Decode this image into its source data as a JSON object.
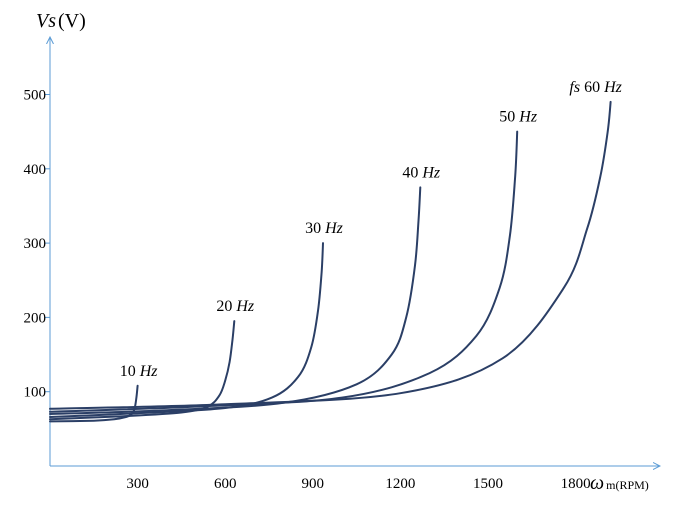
{
  "chart_data": {
    "type": "line",
    "ylabel_main": "Vs",
    "ylabel_unit": "(V)",
    "xlabel_symbol": "ω",
    "xlabel_sub": "m(RPM)",
    "xticks": [
      300,
      600,
      900,
      1200,
      1500,
      1800
    ],
    "yticks": [
      100,
      200,
      300,
      400,
      500
    ],
    "xlim": [
      0,
      2100
    ],
    "ylim": [
      0,
      585
    ],
    "line_color": "#2b3f66",
    "series_prefix": "fs",
    "series": [
      {
        "name": "10 Hz",
        "num": "10",
        "unit": "Hz",
        "x": [
          0,
          150,
          220,
          260,
          280,
          290,
          296,
          300
        ],
        "y": [
          60,
          61,
          63,
          66,
          70,
          78,
          92,
          108
        ]
      },
      {
        "name": "20 Hz",
        "num": "20",
        "unit": "Hz",
        "x": [
          0,
          250,
          450,
          540,
          580,
          600,
          615,
          625,
          631
        ],
        "y": [
          63,
          67,
          72,
          80,
          95,
          115,
          140,
          170,
          195
        ]
      },
      {
        "name": "30 Hz",
        "num": "30",
        "unit": "Hz",
        "x": [
          0,
          300,
          600,
          760,
          850,
          895,
          918,
          930,
          935
        ],
        "y": [
          66,
          71,
          78,
          92,
          120,
          160,
          210,
          260,
          300
        ]
      },
      {
        "name": "40 Hz",
        "num": "40",
        "unit": "Hz",
        "x": [
          0,
          400,
          800,
          1050,
          1170,
          1220,
          1250,
          1262,
          1268
        ],
        "y": [
          70,
          75,
          85,
          110,
          150,
          200,
          270,
          330,
          375
        ]
      },
      {
        "name": "50 Hz",
        "num": "50",
        "unit": "Hz",
        "x": [
          0,
          500,
          1000,
          1300,
          1460,
          1540,
          1575,
          1593,
          1600
        ],
        "y": [
          73,
          80,
          92,
          125,
          175,
          240,
          310,
          390,
          450
        ]
      },
      {
        "name": "60 Hz",
        "num": "60",
        "unit": "Hz",
        "x": [
          0,
          600,
          1200,
          1550,
          1760,
          1840,
          1885,
          1910,
          1920
        ],
        "y": [
          77,
          83,
          98,
          145,
          240,
          320,
          390,
          450,
          490
        ]
      }
    ]
  }
}
